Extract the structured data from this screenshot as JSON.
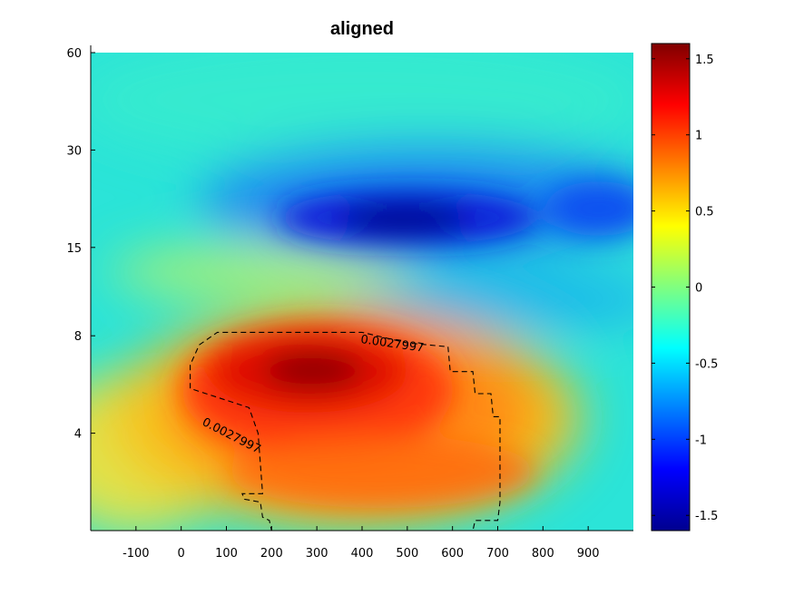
{
  "chart_data": {
    "type": "heatmap",
    "title": "aligned",
    "xlabel": "",
    "ylabel": "",
    "x_ticks": [
      "-100",
      "0",
      "100",
      "200",
      "300",
      "400",
      "500",
      "600",
      "700",
      "800",
      "900"
    ],
    "x_tick_values": [
      -100,
      0,
      100,
      200,
      300,
      400,
      500,
      600,
      700,
      800,
      900
    ],
    "xlim": [
      -200,
      1000
    ],
    "y_ticks": [
      "60",
      "30",
      "15",
      "8",
      "4"
    ],
    "y_tick_values": [
      60,
      30,
      15,
      8,
      4
    ],
    "y_scale": "log",
    "ylim": [
      2,
      60
    ],
    "colorbar": {
      "colormap": "jet",
      "range": [
        -1.6,
        1.6
      ],
      "ticks": [
        "1.5",
        "1",
        "0.5",
        "0",
        "-0.5",
        "-1",
        "-1.5"
      ],
      "tick_values": [
        1.5,
        1,
        0.5,
        0,
        -0.5,
        -1,
        -1.5
      ]
    },
    "features": [
      {
        "kind": "positive-peak",
        "x": 310,
        "y": 6.5,
        "value": 1.55
      },
      {
        "kind": "negative-trough",
        "x": 450,
        "y": 19,
        "value": -1.55
      },
      {
        "kind": "negative-band",
        "x": 550,
        "y": 11,
        "value": -0.8
      }
    ],
    "contour": {
      "level_label": "0.0027997",
      "style": "dashed",
      "polygon": [
        [
          40,
          7.5
        ],
        [
          80,
          8.2
        ],
        [
          400,
          8.2
        ],
        [
          500,
          7.6
        ],
        [
          590,
          7.4
        ],
        [
          595,
          6.2
        ],
        [
          645,
          6.2
        ],
        [
          650,
          5.3
        ],
        [
          685,
          5.3
        ],
        [
          690,
          4.5
        ],
        [
          705,
          4.5
        ],
        [
          705,
          2.45
        ],
        [
          700,
          2.15
        ],
        [
          650,
          2.15
        ],
        [
          645,
          2.0
        ],
        [
          490,
          2.0
        ],
        [
          485,
          1.9
        ],
        [
          340,
          1.9
        ],
        [
          335,
          2.0
        ],
        [
          200,
          2.0
        ],
        [
          195,
          2.15
        ],
        [
          180,
          2.2
        ],
        [
          175,
          2.45
        ],
        [
          140,
          2.5
        ],
        [
          135,
          2.6
        ],
        [
          180,
          2.6
        ],
        [
          170,
          4.0
        ],
        [
          150,
          4.8
        ],
        [
          20,
          5.5
        ],
        [
          20,
          6.5
        ],
        [
          40,
          7.5
        ]
      ]
    }
  }
}
